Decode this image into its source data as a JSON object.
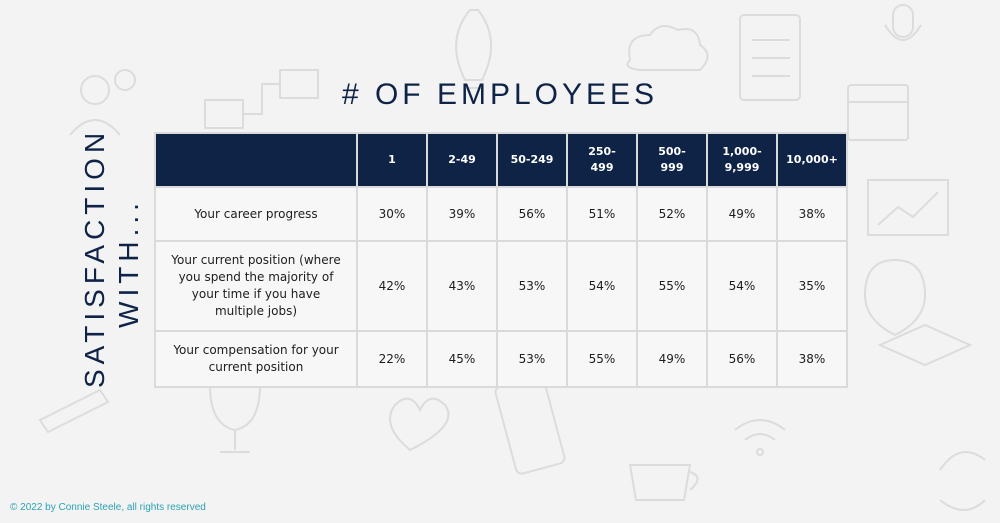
{
  "title": "# OF EMPLOYEES",
  "side_label": [
    "SATISFACTION",
    "WITH..."
  ],
  "copyright": "© 2022 by Connie Steele, all rights reserved",
  "colors": {
    "header_bg": "#0f2347",
    "title": "#0f2347",
    "copyright": "#2ba3b4"
  },
  "table": {
    "corner_header": "",
    "columns": [
      "1",
      "2-49",
      "50-249",
      "250-\n499",
      "500-\n999",
      "1,000-\n9,999",
      "10,000+"
    ],
    "rows": [
      {
        "label": "Your career progress",
        "values": [
          "30%",
          "39%",
          "56%",
          "51%",
          "52%",
          "49%",
          "38%"
        ]
      },
      {
        "label": "Your current position (where you spend the majority of your time if you have multiple jobs)",
        "values": [
          "42%",
          "43%",
          "53%",
          "54%",
          "55%",
          "54%",
          "35%"
        ]
      },
      {
        "label": "Your compensation for your current position",
        "values": [
          "22%",
          "45%",
          "53%",
          "55%",
          "49%",
          "56%",
          "38%"
        ]
      }
    ]
  },
  "chart_data": {
    "type": "table",
    "title": "# OF EMPLOYEES",
    "row_axis_label": "SATISFACTION WITH...",
    "categories": [
      "1",
      "2-49",
      "50-249",
      "250-499",
      "500-999",
      "1,000-9,999",
      "10,000+"
    ],
    "series": [
      {
        "name": "Your career progress",
        "values": [
          30,
          39,
          56,
          51,
          52,
          49,
          38
        ]
      },
      {
        "name": "Your current position (where you spend the majority of your time if you have multiple jobs)",
        "values": [
          42,
          43,
          53,
          54,
          55,
          54,
          35
        ]
      },
      {
        "name": "Your compensation for your current position",
        "values": [
          22,
          45,
          53,
          55,
          49,
          56,
          38
        ]
      }
    ],
    "unit": "%"
  }
}
